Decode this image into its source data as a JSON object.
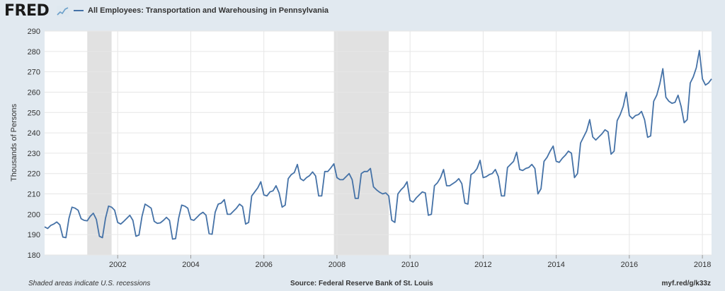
{
  "header": {
    "logo_text": "FRED",
    "logo_icon": "trend-line-icon",
    "series_label": "All Employees: Transportation and Warehousing in Pennsylvania",
    "series_color": "#4572a7"
  },
  "footer": {
    "note": "Shaded areas indicate U.S. recessions",
    "source": "Source: Federal Reserve Bank of St. Louis",
    "short_url": "myf.red/g/k33z"
  },
  "chart_data": {
    "type": "line",
    "title": "",
    "xlabel": "",
    "ylabel": "Thousands of Persons",
    "ylim": [
      180,
      290
    ],
    "yticks": [
      180,
      190,
      200,
      210,
      220,
      230,
      240,
      250,
      260,
      270,
      280,
      290
    ],
    "xlim": [
      "2000-01",
      "2018-04"
    ],
    "xticks": [
      "2002",
      "2004",
      "2006",
      "2008",
      "2010",
      "2012",
      "2014",
      "2016",
      "2018"
    ],
    "grid": true,
    "background": "#ffffff",
    "line_color": "#4572a7",
    "recession_color": "#e1e1e1",
    "recessions": [
      {
        "start": "2001-03",
        "end": "2001-11"
      },
      {
        "start": "2007-12",
        "end": "2009-06"
      }
    ],
    "series": [
      {
        "name": "All Employees: Transportation and Warehousing in Pennsylvania",
        "start": "2000-01",
        "frequency": "monthly",
        "values": [
          193.8,
          193.0,
          194.5,
          195.2,
          196.2,
          194.8,
          188.8,
          188.5,
          198.0,
          203.5,
          203.0,
          202.0,
          197.8,
          197.0,
          196.8,
          199.0,
          200.5,
          197.5,
          189.2,
          188.5,
          198.0,
          204.0,
          203.5,
          202.0,
          196.0,
          195.2,
          196.5,
          198.0,
          199.5,
          197.0,
          189.2,
          189.8,
          199.0,
          205.0,
          204.0,
          203.0,
          196.5,
          195.5,
          195.8,
          197.0,
          198.5,
          197.0,
          187.8,
          188.0,
          198.0,
          204.5,
          204.0,
          203.0,
          197.5,
          197.0,
          198.5,
          200.0,
          201.0,
          199.5,
          190.5,
          190.2,
          201.0,
          205.0,
          205.5,
          207.2,
          200.0,
          200.0,
          201.5,
          203.0,
          205.0,
          203.8,
          195.2,
          196.0,
          209.0,
          211.0,
          213.0,
          216.0,
          209.5,
          209.0,
          211.0,
          211.5,
          214.0,
          210.5,
          203.5,
          204.5,
          217.5,
          219.5,
          220.5,
          224.5,
          217.5,
          216.5,
          218.0,
          219.0,
          220.8,
          218.8,
          209.0,
          209.0,
          221.0,
          221.0,
          222.8,
          224.8,
          218.0,
          217.0,
          217.0,
          218.5,
          220.0,
          217.0,
          207.8,
          207.8,
          220.0,
          221.0,
          221.0,
          222.5,
          213.5,
          212.0,
          210.8,
          210.0,
          210.5,
          209.0,
          197.0,
          196.0,
          210.0,
          212.0,
          213.5,
          216.0,
          206.8,
          206.0,
          208.0,
          209.5,
          211.0,
          210.5,
          199.5,
          200.0,
          214.0,
          215.5,
          218.0,
          222.0,
          214.0,
          214.0,
          215.0,
          216.0,
          217.5,
          215.0,
          205.5,
          205.0,
          219.5,
          220.5,
          222.5,
          226.5,
          218.0,
          218.5,
          219.5,
          220.0,
          222.0,
          218.5,
          209.0,
          209.0,
          223.0,
          224.5,
          226.0,
          230.5,
          222.0,
          221.5,
          222.5,
          223.0,
          224.5,
          222.5,
          210.0,
          212.5,
          226.0,
          228.0,
          231.0,
          233.5,
          226.0,
          225.5,
          227.5,
          229.0,
          231.0,
          230.0,
          218.0,
          220.0,
          235.0,
          238.0,
          241.0,
          246.5,
          238.0,
          236.5,
          238.0,
          239.5,
          241.5,
          240.5,
          229.5,
          231.0,
          246.0,
          249.0,
          253.0,
          260.0,
          248.5,
          247.0,
          248.5,
          249.0,
          250.5,
          246.5,
          237.8,
          238.5,
          255.5,
          258.5,
          264.0,
          271.5,
          257.5,
          255.5,
          254.5,
          255.0,
          258.5,
          253.0,
          245.0,
          246.5,
          264.5,
          267.5,
          272.0,
          280.5,
          266.5,
          263.5,
          264.5,
          266.5
        ]
      }
    ]
  }
}
